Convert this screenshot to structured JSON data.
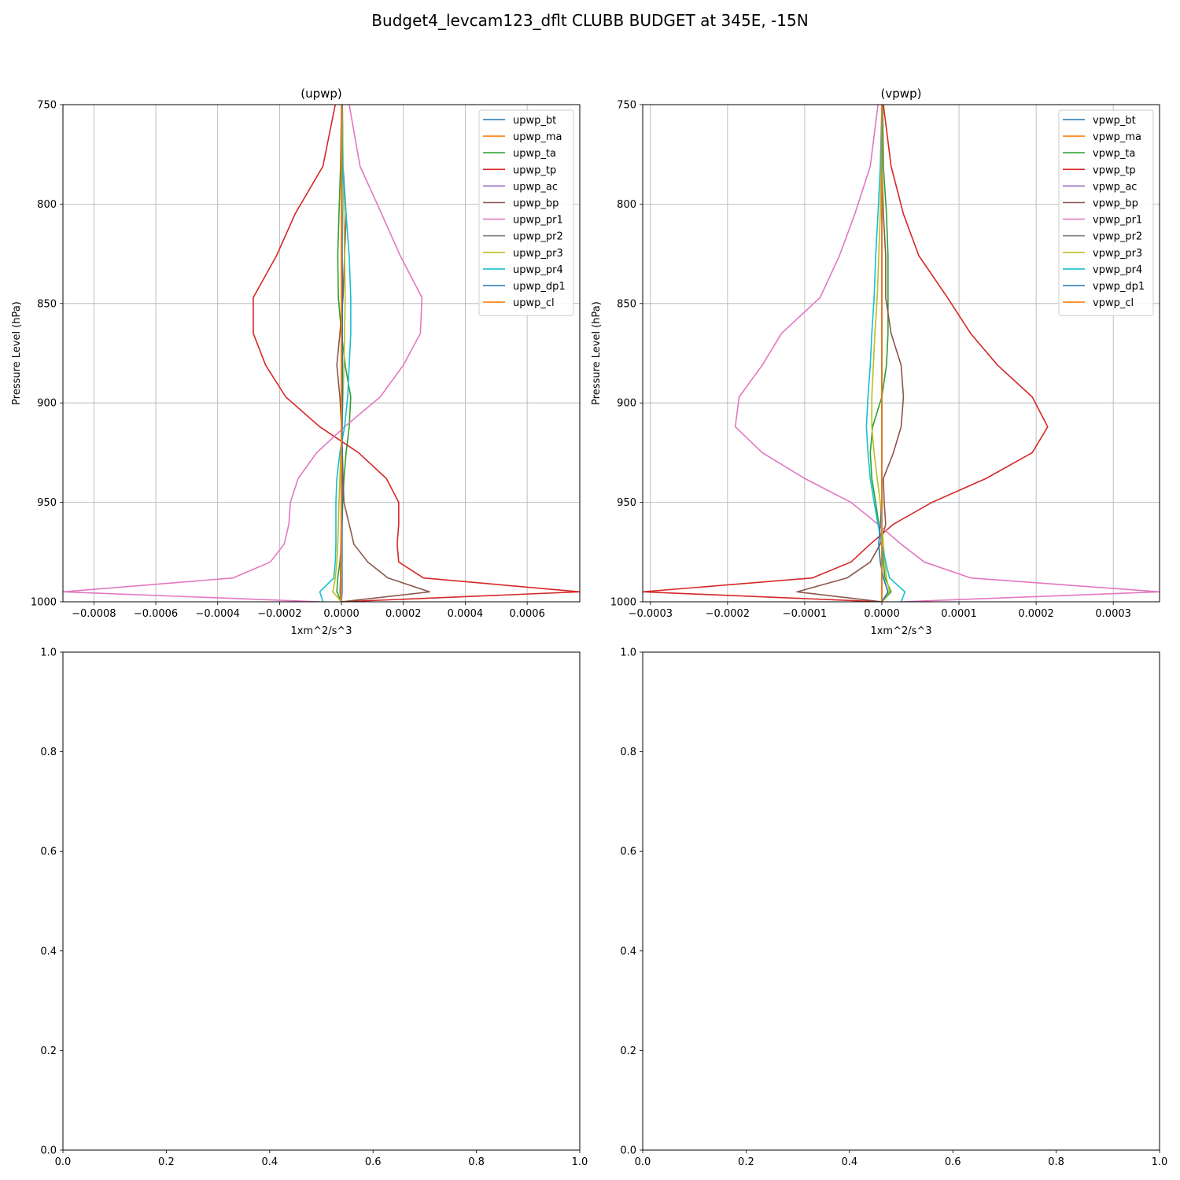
{
  "figure": {
    "title": "Budget4_levcam123_dflt CLUBB BUDGET at 345E, -15N"
  },
  "chart_data": [
    {
      "type": "line",
      "title": "(upwp)",
      "xlabel": "1xm^2/s^3",
      "ylabel": "Pressure Level (hPa)",
      "xlim": [
        -0.0009,
        0.00077
      ],
      "ylim": [
        1000,
        750
      ],
      "y_inverted": true,
      "grid": true,
      "legend_position": "upper right",
      "xticks": [
        "−0.0008",
        "−0.0006",
        "−0.0004",
        "−0.0002",
        "0.0000",
        "0.0002",
        "0.0004",
        "0.0006"
      ],
      "xtick_values": [
        -0.0008,
        -0.0006,
        -0.0004,
        -0.0002,
        0,
        0.0002,
        0.0004,
        0.0006
      ],
      "yticks": [
        "750",
        "800",
        "850",
        "900",
        "950",
        "1000"
      ],
      "ytick_values": [
        750,
        800,
        850,
        900,
        950,
        1000
      ],
      "levels": [
        750,
        781,
        805,
        826,
        847,
        865,
        881,
        897,
        912,
        925,
        938,
        950,
        961,
        971,
        980,
        988,
        995,
        1000
      ],
      "series": [
        {
          "name": "upwp_bt",
          "color": "#1f77b4",
          "values": [
            1e-06,
            1e-06,
            0.0,
            0.0,
            0.0,
            0.0,
            0.0,
            0.0,
            0.0,
            0.0,
            0.0,
            0.0,
            0.0,
            0.0,
            0.0,
            0.0,
            0.0,
            0.0
          ]
        },
        {
          "name": "upwp_ma",
          "color": "#ff7f0e",
          "values": [
            0.0,
            0.0,
            0.0,
            0.0,
            0.0,
            0.0,
            0.0,
            0.0,
            0.0,
            0.0,
            0.0,
            0.0,
            0.0,
            0.0,
            0.0,
            0.0,
            0.0,
            0.0
          ]
        },
        {
          "name": "upwp_ta",
          "color": "#2ca02c",
          "values": [
            0.0,
            -3e-06,
            -8e-06,
            -1.2e-05,
            -1e-05,
            0.0,
            1.2e-05,
            3e-05,
            2.5e-05,
            1.5e-05,
            8e-06,
            4e-06,
            2e-06,
            0.0,
            -5e-06,
            -1.2e-05,
            -1.5e-05,
            0.0
          ]
        },
        {
          "name": "upwp_tp",
          "color": "#d62728",
          "values": [
            -2e-05,
            -6e-05,
            -0.00015,
            -0.00021,
            -0.000285,
            -0.000285,
            -0.000245,
            -0.00018,
            -7e-05,
            5.5e-05,
            0.000145,
            0.000185,
            0.000185,
            0.00018,
            0.000185,
            0.000265,
            0.00077,
            0.0
          ]
        },
        {
          "name": "upwp_ac",
          "color": "#9467bd",
          "values": [
            0.0,
            0.0,
            0.0,
            0.0,
            0.0,
            0.0,
            0.0,
            0.0,
            0.0,
            0.0,
            0.0,
            0.0,
            0.0,
            0.0,
            0.0,
            0.0,
            0.0,
            0.0
          ]
        },
        {
          "name": "upwp_bp",
          "color": "#8c564b",
          "values": [
            3e-06,
            5e-06,
            1.5e-05,
            1e-05,
            5e-06,
            -5e-06,
            -1.5e-05,
            -5e-06,
            0.0,
            3e-06,
            5e-06,
            8e-06,
            2.5e-05,
            4e-05,
            8.5e-05,
            0.00015,
            0.000285,
            0.0
          ]
        },
        {
          "name": "upwp_pr1",
          "color": "#e377c2",
          "values": [
            2.5e-05,
            6e-05,
            0.00013,
            0.00019,
            0.00026,
            0.000255,
            0.0002,
            0.000125,
            1e-05,
            -8e-05,
            -0.00014,
            -0.000165,
            -0.00017,
            -0.000185,
            -0.00023,
            -0.00035,
            -0.0009,
            -7e-05
          ]
        },
        {
          "name": "upwp_pr2",
          "color": "#7f7f7f",
          "values": [
            0.0,
            0.0,
            2e-06,
            2e-06,
            3e-06,
            2e-06,
            2e-06,
            1e-06,
            0.0,
            0.0,
            -1e-06,
            -1e-06,
            -1e-06,
            -2e-06,
            -3e-06,
            -3e-06,
            -5e-06,
            0.0
          ]
        },
        {
          "name": "upwp_pr3",
          "color": "#bcbd22",
          "values": [
            2e-06,
            5e-06,
            8e-06,
            1e-05,
            1.2e-05,
            1e-05,
            8e-06,
            5e-06,
            2e-06,
            -2e-06,
            -5e-06,
            -8e-06,
            -1e-05,
            -1.2e-05,
            -1.5e-05,
            -2e-05,
            -2.8e-05,
            0.0
          ]
        },
        {
          "name": "upwp_pr4",
          "color": "#17becf",
          "values": [
            0.0,
            3e-06,
            1.5e-05,
            2.5e-05,
            3e-05,
            3e-05,
            2.5e-05,
            2e-05,
            1e-05,
            -5e-06,
            -1.5e-05,
            -1.8e-05,
            -1.8e-05,
            -1.8e-05,
            -2e-05,
            -2.5e-05,
            -7e-05,
            -6e-05
          ]
        },
        {
          "name": "upwp_dp1",
          "color": "#1f77b4",
          "values": [
            1e-06,
            1e-06,
            2e-06,
            2e-06,
            3e-06,
            3e-06,
            3e-06,
            3e-06,
            2e-06,
            2e-06,
            2e-06,
            2e-06,
            2e-06,
            2e-06,
            2e-06,
            2e-06,
            2e-06,
            0.0
          ]
        },
        {
          "name": "upwp_cl",
          "color": "#ff7f0e",
          "values": [
            0.0,
            0.0,
            0.0,
            0.0,
            0.0,
            0.0,
            0.0,
            0.0,
            0.0,
            0.0,
            0.0,
            0.0,
            0.0,
            0.0,
            0.0,
            0.0,
            0.0,
            0.0
          ]
        }
      ]
    },
    {
      "type": "line",
      "title": "(vpwp)",
      "xlabel": "1xm^2/s^3",
      "ylabel": "Pressure Level (hPa)",
      "xlim": [
        -0.00031,
        0.00036
      ],
      "ylim": [
        1000,
        750
      ],
      "y_inverted": true,
      "grid": true,
      "legend_position": "upper right",
      "xticks": [
        "−0.0003",
        "−0.0002",
        "−0.0001",
        "0.0000",
        "0.0001",
        "0.0002",
        "0.0003"
      ],
      "xtick_values": [
        -0.0003,
        -0.0002,
        -0.0001,
        0,
        0.0001,
        0.0002,
        0.0003
      ],
      "yticks": [
        "750",
        "800",
        "850",
        "900",
        "950",
        "1000"
      ],
      "ytick_values": [
        750,
        800,
        850,
        900,
        950,
        1000
      ],
      "levels": [
        750,
        781,
        805,
        826,
        847,
        865,
        881,
        897,
        912,
        925,
        938,
        950,
        961,
        971,
        980,
        988,
        995,
        1000
      ],
      "series": [
        {
          "name": "vpwp_bt",
          "color": "#1f77b4",
          "values": [
            0.0,
            0.0,
            0.0,
            0.0,
            0.0,
            0.0,
            0.0,
            0.0,
            0.0,
            0.0,
            0.0,
            0.0,
            0.0,
            0.0,
            0.0,
            0.0,
            0.0,
            0.0
          ]
        },
        {
          "name": "vpwp_ma",
          "color": "#ff7f0e",
          "values": [
            0.0,
            0.0,
            0.0,
            0.0,
            0.0,
            0.0,
            0.0,
            0.0,
            0.0,
            0.0,
            0.0,
            0.0,
            0.0,
            0.0,
            0.0,
            0.0,
            0.0,
            0.0
          ]
        },
        {
          "name": "vpwp_ta",
          "color": "#2ca02c",
          "values": [
            1e-06,
            2e-06,
            6e-06,
            8e-06,
            8e-06,
            8e-06,
            6e-06,
            0.0,
            -1.2e-05,
            -1.5e-05,
            -1.3e-05,
            -8e-06,
            -4e-06,
            0.0,
            2e-06,
            4e-06,
            1.2e-05,
            0.0
          ]
        },
        {
          "name": "vpwp_tp",
          "color": "#d62728",
          "values": [
            2e-06,
            1.2e-05,
            2.8e-05,
            4.8e-05,
            8.5e-05,
            0.000115,
            0.00015,
            0.000195,
            0.000215,
            0.000195,
            0.000135,
            6.5e-05,
            1.5e-05,
            -1.5e-05,
            -4e-05,
            -9e-05,
            -0.00031,
            0.0
          ]
        },
        {
          "name": "vpwp_ac",
          "color": "#9467bd",
          "values": [
            0.0,
            0.0,
            0.0,
            0.0,
            0.0,
            0.0,
            0.0,
            0.0,
            0.0,
            0.0,
            0.0,
            0.0,
            0.0,
            0.0,
            0.0,
            0.0,
            0.0,
            0.0
          ]
        },
        {
          "name": "vpwp_bp",
          "color": "#8c564b",
          "values": [
            0.0,
            0.0,
            2e-06,
            5e-06,
            5e-06,
            1.2e-05,
            2.5e-05,
            2.8e-05,
            2.5e-05,
            1.5e-05,
            2e-06,
            3e-06,
            5e-06,
            -2e-06,
            -1.5e-05,
            -4.5e-05,
            -0.00011,
            0.0
          ]
        },
        {
          "name": "vpwp_pr1",
          "color": "#e377c2",
          "values": [
            -5e-06,
            -1.5e-05,
            -3.5e-05,
            -5.5e-05,
            -8e-05,
            -0.00013,
            -0.000155,
            -0.000185,
            -0.00019,
            -0.000155,
            -0.0001,
            -4e-05,
            -5e-06,
            2.5e-05,
            5.5e-05,
            0.000115,
            0.00036,
            2.5e-05
          ]
        },
        {
          "name": "vpwp_pr2",
          "color": "#7f7f7f",
          "values": [
            0.0,
            0.0,
            0.0,
            0.0,
            0.0,
            0.0,
            0.0,
            0.0,
            0.0,
            0.0,
            0.0,
            0.0,
            0.0,
            0.0,
            0.0,
            0.0,
            0.0,
            0.0
          ]
        },
        {
          "name": "vpwp_pr3",
          "color": "#bcbd22",
          "values": [
            0.0,
            -1e-06,
            -2e-06,
            -4e-06,
            -6e-06,
            -9e-06,
            -1.1e-05,
            -1.3e-05,
            -1.3e-05,
            -1e-05,
            -6e-06,
            -2e-06,
            0.0,
            2e-06,
            4e-06,
            6e-06,
            1e-05,
            0.0
          ]
        },
        {
          "name": "vpwp_pr4",
          "color": "#17becf",
          "values": [
            0.0,
            -2e-06,
            -5e-06,
            -8e-06,
            -1e-05,
            -1.3e-05,
            -1.5e-05,
            -1.8e-05,
            -2e-05,
            -1.8e-05,
            -1.5e-05,
            -1e-05,
            -5e-06,
            0.0,
            5e-06,
            1e-05,
            3e-05,
            2.5e-05
          ]
        },
        {
          "name": "vpwp_dp1",
          "color": "#1f77b4",
          "values": [
            0.0,
            0.0,
            0.0,
            0.0,
            0.0,
            0.0,
            0.0,
            0.0,
            0.0,
            0.0,
            0.0,
            0.0,
            -2e-06,
            -4e-06,
            -2e-06,
            2e-06,
            8e-06,
            0.0
          ]
        },
        {
          "name": "vpwp_cl",
          "color": "#ff7f0e",
          "values": [
            0.0,
            0.0,
            0.0,
            0.0,
            0.0,
            0.0,
            0.0,
            0.0,
            0.0,
            0.0,
            0.0,
            0.0,
            0.0,
            0.0,
            0.0,
            0.0,
            0.0,
            0.0
          ]
        }
      ]
    },
    {
      "type": "line",
      "title": "",
      "xlabel": "",
      "ylabel": "",
      "xlim": [
        0,
        1
      ],
      "ylim": [
        0,
        1
      ],
      "grid": false,
      "xticks": [
        "0.0",
        "0.2",
        "0.4",
        "0.6",
        "0.8",
        "1.0"
      ],
      "xtick_values": [
        0,
        0.2,
        0.4,
        0.6,
        0.8,
        1.0
      ],
      "yticks": [
        "0.0",
        "0.2",
        "0.4",
        "0.6",
        "0.8",
        "1.0"
      ],
      "ytick_values": [
        0,
        0.2,
        0.4,
        0.6,
        0.8,
        1.0
      ],
      "series": []
    },
    {
      "type": "line",
      "title": "",
      "xlabel": "",
      "ylabel": "",
      "xlim": [
        0,
        1
      ],
      "ylim": [
        0,
        1
      ],
      "grid": false,
      "xticks": [
        "0.0",
        "0.2",
        "0.4",
        "0.6",
        "0.8",
        "1.0"
      ],
      "xtick_values": [
        0,
        0.2,
        0.4,
        0.6,
        0.8,
        1.0
      ],
      "yticks": [
        "0.0",
        "0.2",
        "0.4",
        "0.6",
        "0.8",
        "1.0"
      ],
      "ytick_values": [
        0,
        0.2,
        0.4,
        0.6,
        0.8,
        1.0
      ],
      "series": []
    }
  ]
}
